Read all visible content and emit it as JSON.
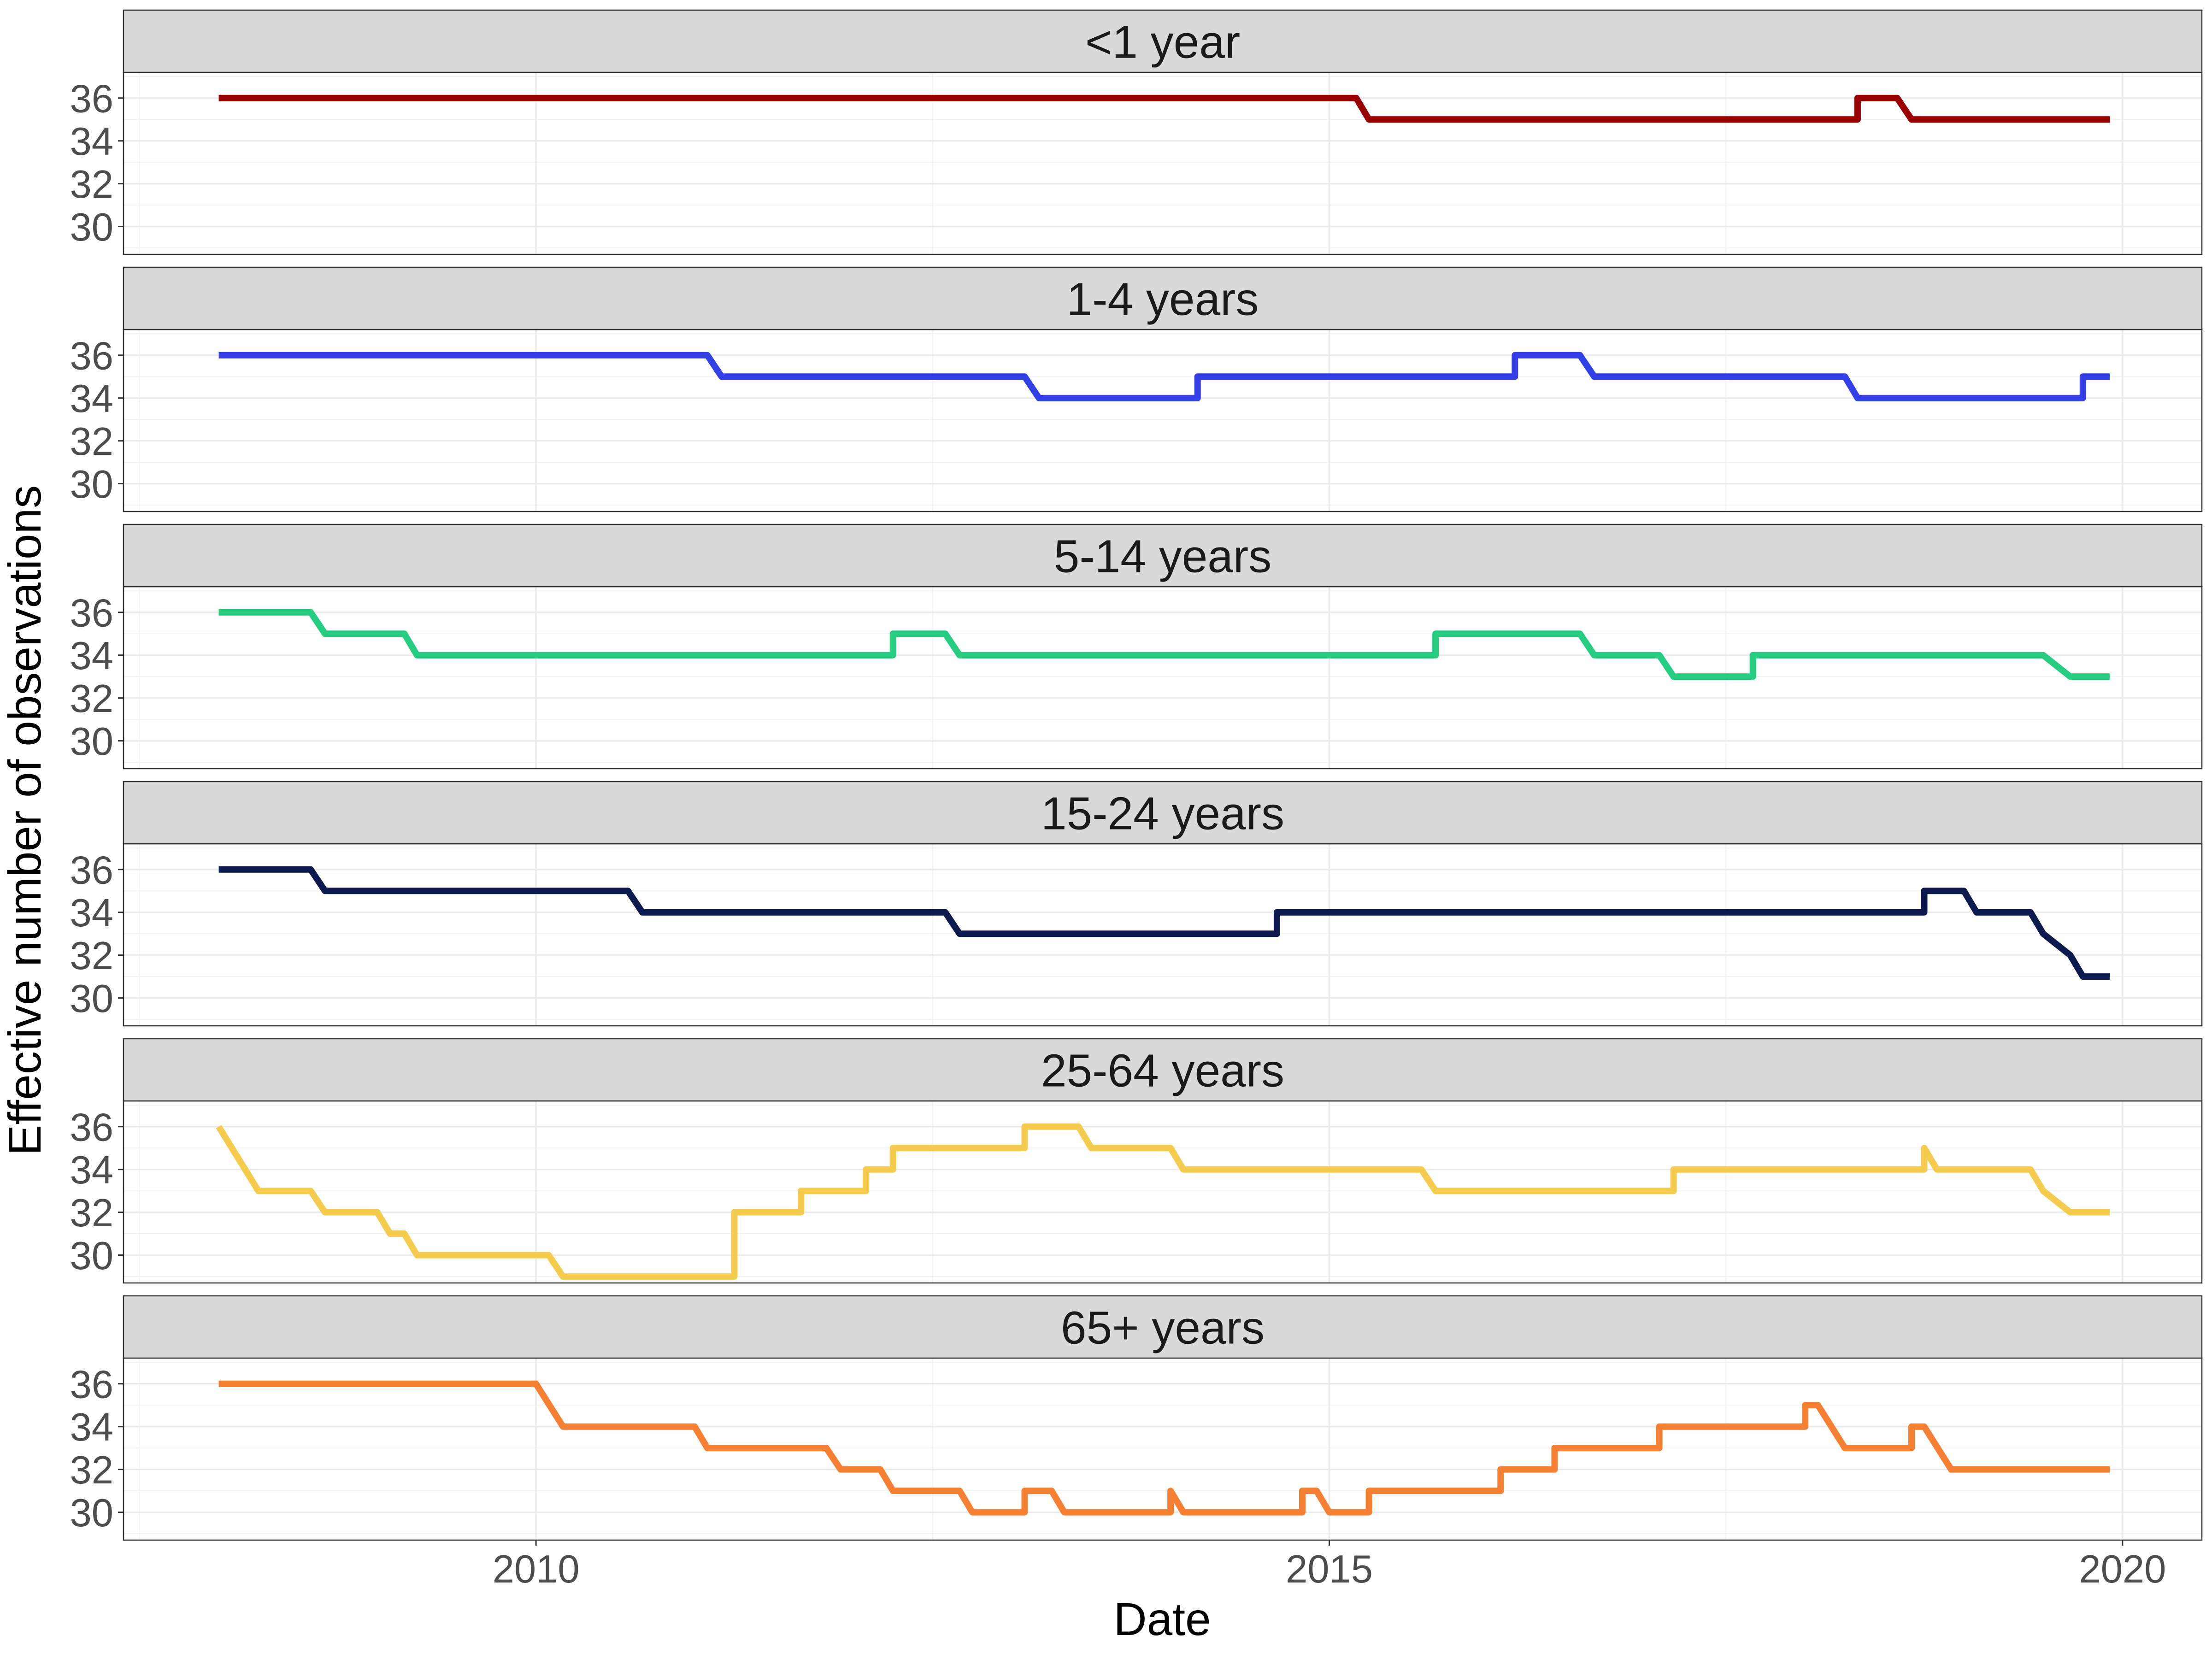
{
  "chart_data": {
    "type": "line",
    "xlabel": "Date",
    "ylabel": "Effective number of observations",
    "xlim": [
      2007.4,
      2020.5
    ],
    "ylim": [
      28.7,
      37.2
    ],
    "x_ticks": [
      2010,
      2015,
      2020
    ],
    "x_tick_labels": [
      "2010",
      "2015",
      "2020"
    ],
    "y_ticks": [
      30,
      32,
      34,
      36
    ],
    "y_tick_labels": [
      "30",
      "32",
      "34",
      "36"
    ],
    "grid": true,
    "legend": "none",
    "facets": [
      {
        "name": "<1 year",
        "color": "#990000",
        "x": [
          2008.0,
          2015.17,
          2015.25,
          2018.33,
          2018.33,
          2018.58,
          2018.67,
          2019.92
        ],
        "y": [
          36,
          36,
          35,
          35,
          36,
          36,
          35,
          35
        ]
      },
      {
        "name": "1-4 years",
        "color": "#3340e6",
        "x": [
          2008.0,
          2011.08,
          2011.17,
          2013.08,
          2013.17,
          2014.17,
          2014.17,
          2016.17,
          2016.17,
          2016.58,
          2016.67,
          2018.25,
          2018.33,
          2019.75,
          2019.75,
          2019.92
        ],
        "y": [
          36,
          36,
          35,
          35,
          34,
          34,
          35,
          35,
          36,
          36,
          35,
          35,
          34,
          34,
          35,
          35
        ]
      },
      {
        "name": "5-14 years",
        "color": "#26cc80",
        "x": [
          2008.0,
          2008.58,
          2008.67,
          2009.17,
          2009.25,
          2012.25,
          2012.25,
          2012.58,
          2012.67,
          2015.67,
          2015.67,
          2016.58,
          2016.67,
          2017.08,
          2017.17,
          2017.67,
          2017.67,
          2019.5,
          2019.67,
          2019.92
        ],
        "y": [
          36,
          36,
          35,
          35,
          34,
          34,
          35,
          35,
          34,
          34,
          35,
          35,
          34,
          34,
          33,
          33,
          34,
          34,
          33,
          33
        ]
      },
      {
        "name": "15-24 years",
        "color": "#0d1a4d",
        "x": [
          2008.0,
          2008.58,
          2008.67,
          2010.58,
          2010.67,
          2012.58,
          2012.67,
          2014.67,
          2014.67,
          2018.75,
          2018.75,
          2019.0,
          2019.08,
          2019.42,
          2019.5,
          2019.67,
          2019.75,
          2019.92
        ],
        "y": [
          36,
          36,
          35,
          35,
          34,
          34,
          33,
          33,
          34,
          34,
          35,
          35,
          34,
          34,
          33,
          32,
          31,
          31
        ]
      },
      {
        "name": "25-64 years",
        "color": "#f5cc4d",
        "x": [
          2008.0,
          2008.25,
          2008.58,
          2008.67,
          2009.0,
          2009.08,
          2009.17,
          2009.25,
          2010.08,
          2010.17,
          2011.25,
          2011.25,
          2011.67,
          2011.67,
          2012.08,
          2012.08,
          2012.25,
          2012.25,
          2013.08,
          2013.08,
          2013.42,
          2013.5,
          2014.0,
          2014.08,
          2015.58,
          2015.67,
          2017.17,
          2017.17,
          2018.75,
          2018.75,
          2018.83,
          2019.42,
          2019.5,
          2019.67,
          2019.92
        ],
        "y": [
          36,
          33,
          33,
          32,
          32,
          31,
          31,
          30,
          30,
          29,
          29,
          32,
          32,
          33,
          33,
          34,
          34,
          35,
          35,
          36,
          36,
          35,
          35,
          34,
          34,
          33,
          33,
          34,
          34,
          35,
          34,
          34,
          33,
          32,
          32
        ]
      },
      {
        "name": "65+ years",
        "color": "#f58033",
        "x": [
          2008.0,
          2010.0,
          2010.17,
          2011.0,
          2011.08,
          2011.83,
          2011.92,
          2012.17,
          2012.25,
          2012.67,
          2012.75,
          2013.08,
          2013.08,
          2013.25,
          2013.33,
          2014.0,
          2014.0,
          2014.08,
          2014.83,
          2014.83,
          2014.92,
          2015.0,
          2015.17,
          2015.25,
          2015.25,
          2016.08,
          2016.08,
          2016.42,
          2016.42,
          2017.08,
          2017.08,
          2018.0,
          2018.0,
          2018.08,
          2018.25,
          2018.67,
          2018.67,
          2018.75,
          2018.92,
          2019.92
        ],
        "y": [
          36,
          36,
          34,
          34,
          33,
          33,
          32,
          32,
          31,
          31,
          30,
          30,
          31,
          31,
          30,
          30,
          31,
          30,
          30,
          31,
          31,
          30,
          30,
          30,
          31,
          31,
          32,
          32,
          33,
          33,
          34,
          34,
          35,
          35,
          33,
          33,
          34,
          34,
          32,
          32
        ]
      }
    ]
  }
}
